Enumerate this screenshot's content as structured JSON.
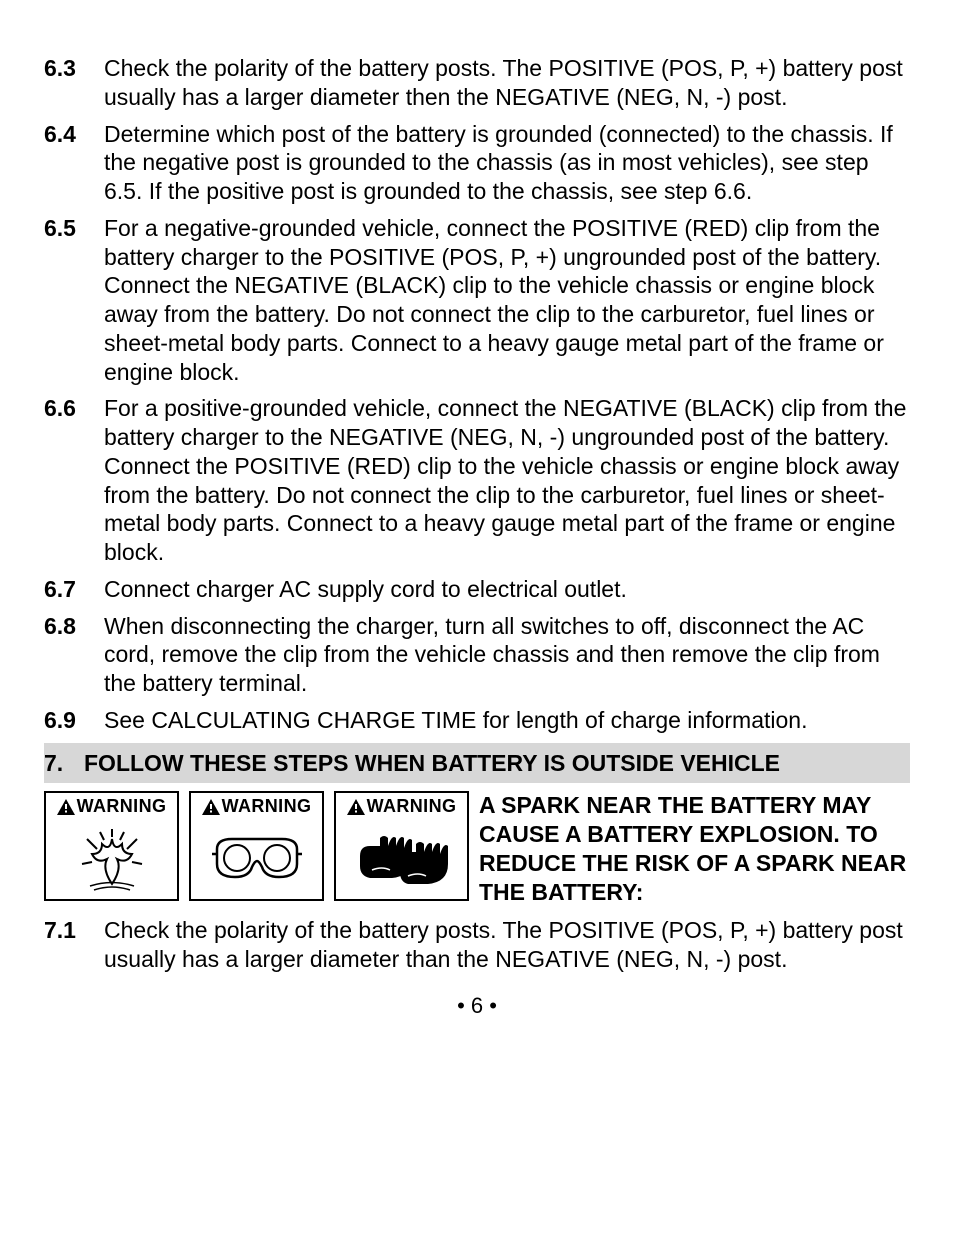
{
  "items": [
    {
      "num": "6.3",
      "text": "Check the polarity of the battery posts. The POSITIVE (POS, P, +) battery post usually has a larger diameter then the NEGATIVE (NEG, N, -) post."
    },
    {
      "num": "6.4",
      "text": "Determine which post of the battery is grounded (connected) to the chassis. If the negative post is grounded to the chassis (as in most vehicles), see step 6.5. If the positive post is grounded to the chassis, see step 6.6."
    },
    {
      "num": "6.5",
      "text": "For a negative-grounded vehicle, connect the POSITIVE (RED) clip from the battery charger to the POSITIVE (POS, P, +) ungrounded post of the battery. Connect the NEGATIVE (BLACK) clip to the vehicle chassis or engine block away from the battery. Do not connect the clip to the carburetor, fuel lines or sheet-metal body parts. Connect to a heavy gauge metal part of the frame or engine block."
    },
    {
      "num": "6.6",
      "text": "For a positive-grounded vehicle, connect the NEGATIVE (BLACK) clip from the battery charger to the NEGATIVE (NEG, N, -) ungrounded post of the battery. Connect the POSITIVE (RED) clip to the vehicle chassis or engine block away from the battery. Do not connect the clip to the carburetor, fuel lines or sheet-metal body parts. Connect to a heavy gauge metal part of the frame or engine block."
    },
    {
      "num": "6.7",
      "text": "Connect charger AC supply cord to electrical outlet."
    },
    {
      "num": "6.8",
      "text": "When disconnecting the charger, turn all switches to off, disconnect the AC cord, remove the clip from the vehicle chassis and then remove the clip from the battery terminal."
    },
    {
      "num": "6.9",
      "text": "See CALCULATING CHARGE TIME for length of charge information."
    }
  ],
  "section": {
    "num": "7.",
    "title": "FOLLOW THESE STEPS WHEN BATTERY IS OUTSIDE VEHICLE"
  },
  "warning": {
    "label": "WARNING",
    "text": "A SPARK NEAR THE BATTERY MAY CAUSE A BATTERY EXPLOSION. TO REDUCE THE RISK OF A SPARK NEAR THE BATTERY:"
  },
  "items2": [
    {
      "num": "7.1",
      "text": "Check the polarity of the battery posts. The POSITIVE (POS, P, +) battery post usually has a larger diameter than the NEGATIVE (NEG, N, -) post."
    }
  ],
  "page": "• 6 •",
  "colors": {
    "header_bg": "#d7d7d7",
    "text": "#000000",
    "bg": "#ffffff"
  }
}
